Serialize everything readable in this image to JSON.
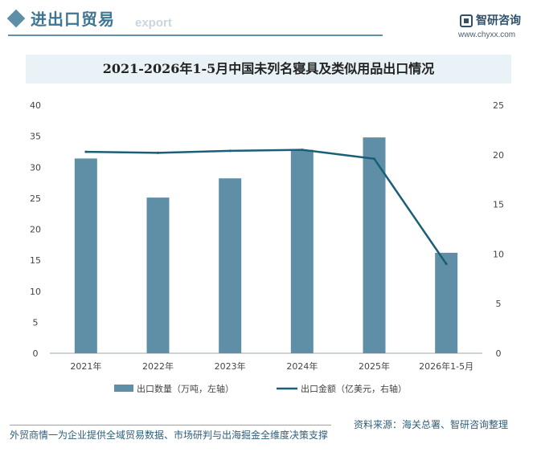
{
  "header": {
    "section_title": "进出口贸易",
    "section_subtitle": "export",
    "brand_name": "智研咨询",
    "brand_url": "www.chyxx.com"
  },
  "footer": {
    "left_text": "外贸商情一为企业提供全域贸易数据、市场研判与出海掘金全维度决策支撑",
    "source_text": "资料来源：海关总署、智研咨询整理"
  },
  "colors": {
    "bar": "#5f8fa6",
    "line": "#1b5e78",
    "accent": "#3e7593"
  },
  "chart_data": {
    "type": "bar+line",
    "title": "2021-2026年1-5月中国未列名寝具及类似用品出口情况",
    "categories": [
      "2021年",
      "2022年",
      "2023年",
      "2024年",
      "2025年",
      "2026年1-5月"
    ],
    "series": [
      {
        "name": "出口数量（万吨，左轴）",
        "type": "bar",
        "axis": "left",
        "values": [
          31.4,
          25.1,
          28.2,
          32.8,
          34.8,
          16.2
        ]
      },
      {
        "name": "出口金额（亿美元，右轴）",
        "type": "line",
        "axis": "right",
        "values": [
          20.3,
          20.2,
          20.4,
          20.5,
          19.6,
          9.0
        ]
      }
    ],
    "left_axis": {
      "ylim": [
        0,
        40
      ],
      "ticks": [
        "0",
        "5",
        "10",
        "15",
        "20",
        "25",
        "30",
        "35",
        "40"
      ]
    },
    "right_axis": {
      "ylim": [
        0,
        25
      ],
      "ticks": [
        "0",
        "5",
        "10",
        "15",
        "20",
        "25"
      ]
    },
    "legend_position": "bottom",
    "grid": false
  }
}
